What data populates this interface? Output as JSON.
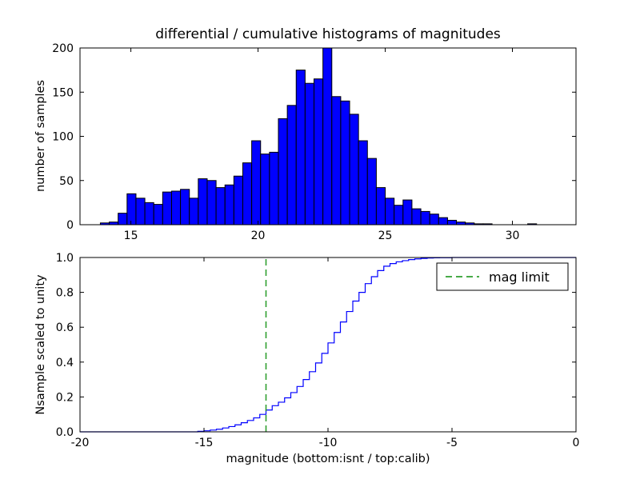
{
  "figure": {
    "background": "#ffffff"
  },
  "chart_data": [
    {
      "type": "bar",
      "title": "differential / cumulative histograms of magnitudes",
      "ylabel": "number of samples",
      "bar_color": "#0000ff",
      "bar_edge_color": "#000000",
      "bin_start": 13.8,
      "bin_width": 0.35,
      "values": [
        2,
        3,
        13,
        35,
        30,
        25,
        23,
        37,
        38,
        40,
        30,
        52,
        50,
        42,
        45,
        55,
        70,
        95,
        80,
        82,
        120,
        135,
        175,
        160,
        165,
        200,
        145,
        140,
        125,
        95,
        75,
        42,
        30,
        22,
        28,
        18,
        15,
        12,
        8,
        5,
        3,
        2,
        1,
        1,
        0,
        0,
        0,
        0,
        1,
        0
      ],
      "xlim": [
        13,
        32.5
      ],
      "ylim": [
        0,
        200
      ],
      "xticks": [
        15,
        20,
        25,
        30
      ],
      "xtick_labels": [
        "15",
        "20",
        "25",
        "30"
      ],
      "yticks": [
        0,
        50,
        100,
        150,
        200
      ],
      "ytick_labels": [
        "0",
        "50",
        "100",
        "150",
        "200"
      ],
      "grid": false
    },
    {
      "type": "line",
      "ylabel": "Nsample scaled to unity",
      "xlabel": "magnitude (bottom:isnt / top:calib)",
      "line_color": "#0000ff",
      "line_style": "step",
      "xlim": [
        -20,
        0
      ],
      "ylim": [
        0,
        1
      ],
      "xticks": [
        -20,
        -15,
        -10,
        -5,
        0
      ],
      "xtick_labels": [
        "-20",
        "-15",
        "-10",
        "-5",
        "0"
      ],
      "yticks": [
        0,
        0.2,
        0.4,
        0.6,
        0.8,
        1.0
      ],
      "ytick_labels": [
        "0.0",
        "0.2",
        "0.4",
        "0.6",
        "0.8",
        "1.0"
      ],
      "x": [
        -20,
        -15.5,
        -15.25,
        -15,
        -14.75,
        -14.5,
        -14.25,
        -14,
        -13.75,
        -13.5,
        -13.25,
        -13,
        -12.75,
        -12.5,
        -12.25,
        -12,
        -11.75,
        -11.5,
        -11.25,
        -11,
        -10.75,
        -10.5,
        -10.25,
        -10,
        -9.75,
        -9.5,
        -9.25,
        -9,
        -8.75,
        -8.5,
        -8.25,
        -8,
        -7.75,
        -7.5,
        -7.25,
        -7,
        -6.75,
        -6.5,
        -6.25,
        -6,
        -5.75,
        -5.5,
        -5,
        0
      ],
      "y": [
        0,
        0,
        0.003,
        0.006,
        0.01,
        0.015,
        0.022,
        0.03,
        0.04,
        0.052,
        0.065,
        0.08,
        0.1,
        0.125,
        0.15,
        0.17,
        0.195,
        0.225,
        0.26,
        0.3,
        0.345,
        0.395,
        0.45,
        0.51,
        0.57,
        0.63,
        0.69,
        0.75,
        0.8,
        0.85,
        0.89,
        0.925,
        0.95,
        0.965,
        0.975,
        0.982,
        0.988,
        0.992,
        0.995,
        0.997,
        0.998,
        0.999,
        1.0,
        1.0
      ],
      "vline": {
        "x": -12.5,
        "color": "#2e9e2e",
        "style": "dashed",
        "label": "mag limit"
      },
      "legend": {
        "label": "mag limit",
        "position": "upper right"
      },
      "grid": false
    }
  ]
}
